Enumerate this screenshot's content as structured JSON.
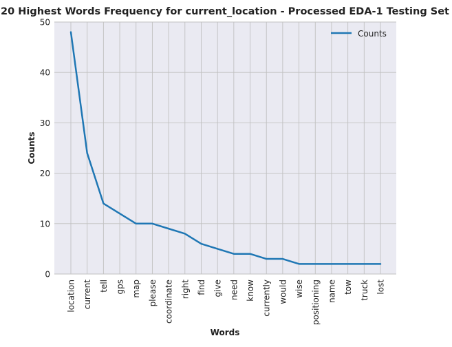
{
  "chart_data": {
    "type": "line",
    "title": "20 Highest Words Frequency for current_location - Processed EDA-1 Testing Set",
    "xlabel": "Words",
    "ylabel": "Counts",
    "categories": [
      "location",
      "current",
      "tell",
      "gps",
      "map",
      "please",
      "coordinate",
      "right",
      "find",
      "give",
      "need",
      "know",
      "currently",
      "would",
      "wise",
      "positioning",
      "name",
      "tow",
      "truck",
      "lost"
    ],
    "series": [
      {
        "name": "Counts",
        "values": [
          48,
          24,
          14,
          12,
          10,
          10,
          9,
          8,
          6,
          5,
          4,
          4,
          3,
          3,
          2,
          2,
          2,
          2,
          2,
          2
        ]
      }
    ],
    "ylim": [
      0,
      50
    ],
    "yticks": [
      0,
      10,
      20,
      30,
      40,
      50
    ],
    "grid": true,
    "legend_position": "top-right",
    "colors": {
      "line": "#1f77b4",
      "plot_background": "#eaeaf2",
      "grid": "#c0c0c0",
      "text": "#222222"
    }
  }
}
